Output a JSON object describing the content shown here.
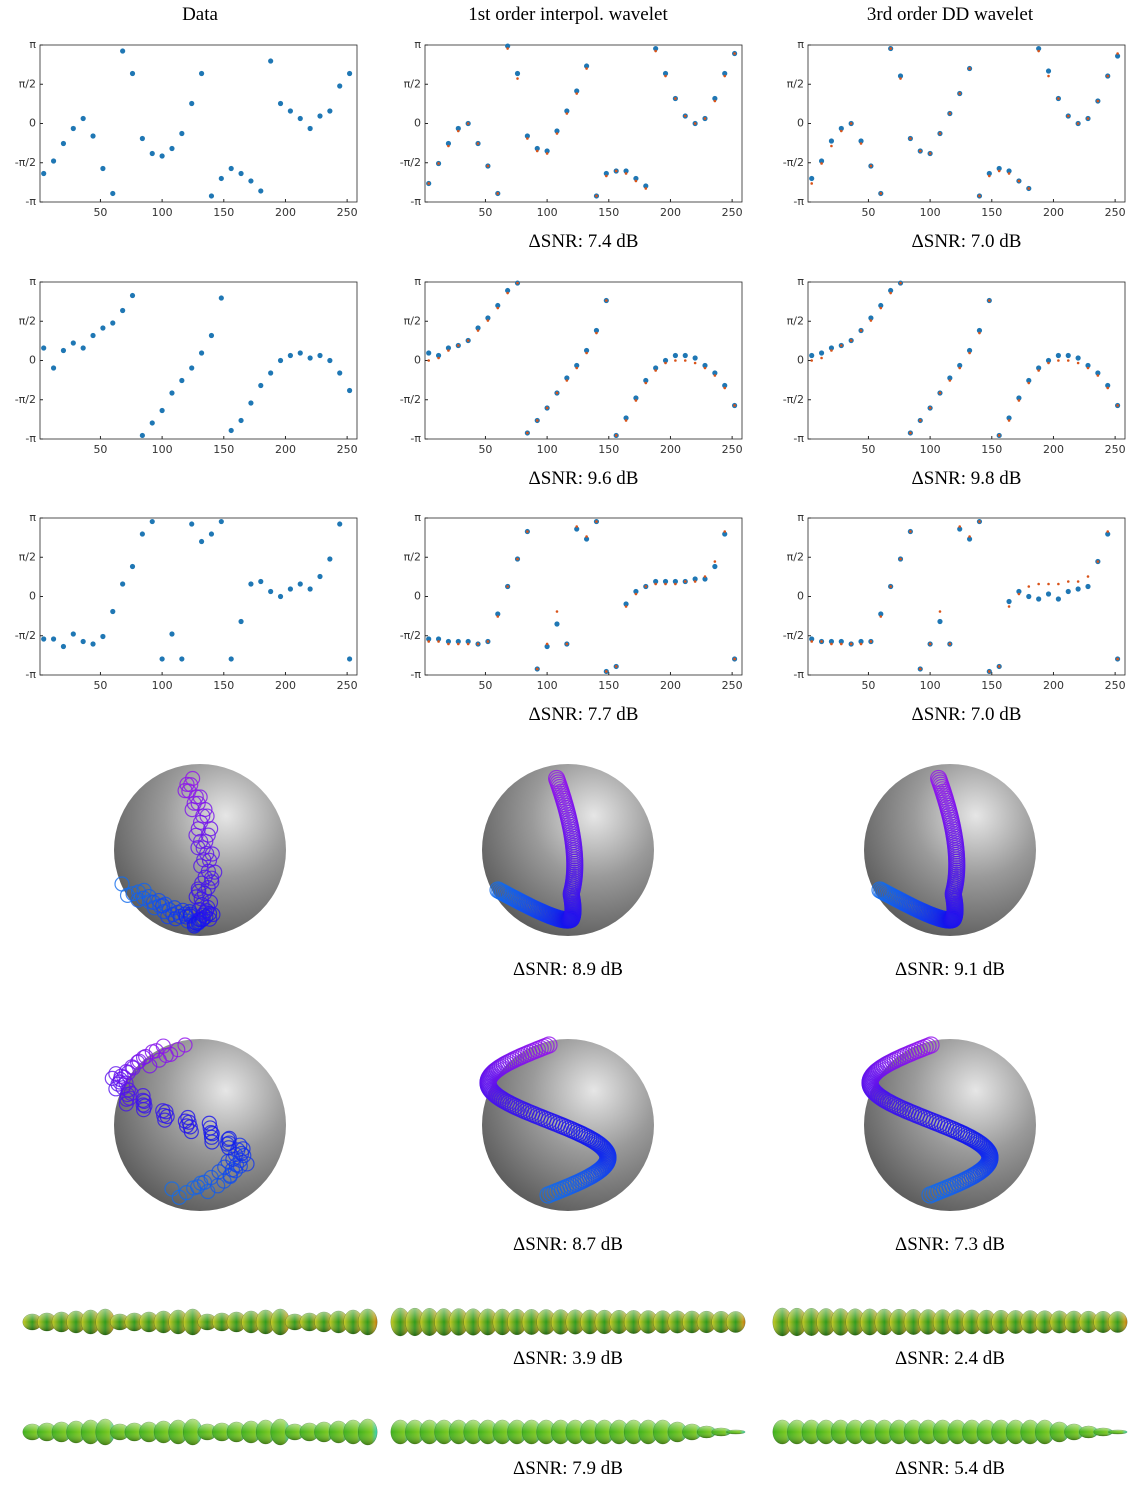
{
  "column_titles": [
    "Data",
    "1st order interpol. wavelet",
    "3rd order DD wavelet"
  ],
  "chart_data": [
    {
      "type": "scatter",
      "x": [
        4,
        12,
        20,
        28,
        36,
        44,
        52,
        60,
        68,
        76,
        84,
        92,
        100,
        108,
        116,
        124,
        132,
        140,
        148,
        156,
        164,
        172,
        180,
        188,
        196,
        204,
        212,
        220,
        228,
        236,
        244,
        252
      ],
      "series": [
        {
          "color": "#1f77b4",
          "values": [
            -2.0,
            -1.5,
            -0.8,
            -0.2,
            0.2,
            -0.5,
            -1.8,
            -2.8,
            2.9,
            2.0,
            -0.6,
            -1.2,
            -1.3,
            -1.0,
            -0.4,
            0.8,
            2.0,
            -2.9,
            -2.2,
            -1.8,
            -2.0,
            -2.3,
            -2.7,
            2.5,
            0.8,
            0.5,
            0.2,
            -0.2,
            0.3,
            0.5,
            1.5,
            2.0
          ]
        }
      ],
      "xlim": [
        1,
        258
      ],
      "xticks": [
        50,
        100,
        150,
        200,
        250
      ],
      "ylim": [
        -3.1416,
        3.1416
      ],
      "yticks": [
        {
          "value": -3.1416,
          "label": "-π"
        },
        {
          "value": -1.5708,
          "label": "-π/2"
        },
        0,
        {
          "value": 1.5708,
          "label": "π/2"
        },
        {
          "value": 3.1416,
          "label": "π"
        }
      ]
    },
    {
      "type": "scatter",
      "caption": "ΔSNR: 7.4 dB",
      "x": [
        4,
        12,
        20,
        28,
        36,
        44,
        52,
        60,
        68,
        76,
        84,
        92,
        100,
        108,
        116,
        124,
        132,
        140,
        148,
        156,
        164,
        172,
        180,
        188,
        196,
        204,
        212,
        220,
        228,
        236,
        244,
        252
      ],
      "series": [
        {
          "color": "#1f77b4",
          "values": [
            -2.4,
            -1.6,
            -0.8,
            -0.2,
            0.0,
            -0.8,
            -1.7,
            -2.8,
            3.1,
            2.0,
            -0.5,
            -1.0,
            -1.1,
            -0.3,
            0.5,
            1.3,
            2.3,
            -2.9,
            -2.0,
            -1.9,
            -1.9,
            -2.2,
            -2.5,
            3.0,
            2.0,
            1.0,
            0.3,
            0.0,
            0.2,
            1.0,
            2.0,
            2.8
          ]
        },
        {
          "color": "#d95319",
          "values": [
            -2.4,
            -1.6,
            -0.9,
            -0.3,
            0.0,
            -0.8,
            -1.7,
            -2.8,
            3.0,
            1.8,
            -0.6,
            -1.1,
            -1.2,
            -0.4,
            0.4,
            1.2,
            2.2,
            -2.9,
            -2.1,
            -1.9,
            -2.0,
            -2.3,
            -2.6,
            2.9,
            1.9,
            1.0,
            0.3,
            0.0,
            0.2,
            0.9,
            1.9,
            2.8
          ]
        }
      ],
      "xlim": [
        1,
        258
      ],
      "xticks": [
        50,
        100,
        150,
        200,
        250
      ],
      "ylim": [
        -3.1416,
        3.1416
      ],
      "yticks": [
        {
          "value": -3.1416,
          "label": "-π"
        },
        {
          "value": -1.5708,
          "label": "-π/2"
        },
        0,
        {
          "value": 1.5708,
          "label": "π/2"
        },
        {
          "value": 3.1416,
          "label": "π"
        }
      ]
    },
    {
      "type": "scatter",
      "caption": "ΔSNR: 7.0 dB",
      "x": [
        4,
        12,
        20,
        28,
        36,
        44,
        52,
        60,
        68,
        76,
        84,
        92,
        100,
        108,
        116,
        124,
        132,
        140,
        148,
        156,
        164,
        172,
        180,
        188,
        196,
        204,
        212,
        220,
        228,
        236,
        244,
        252
      ],
      "series": [
        {
          "color": "#1f77b4",
          "values": [
            -2.2,
            -1.5,
            -0.7,
            -0.2,
            0.0,
            -0.7,
            -1.7,
            -2.8,
            3.0,
            1.9,
            -0.6,
            -1.1,
            -1.2,
            -0.4,
            0.4,
            1.2,
            2.2,
            -2.9,
            -2.0,
            -1.8,
            -1.9,
            -2.3,
            -2.6,
            3.0,
            2.1,
            1.0,
            0.3,
            0.0,
            0.2,
            0.9,
            1.9,
            2.7
          ]
        },
        {
          "color": "#d95319",
          "values": [
            -2.4,
            -1.6,
            -0.9,
            -0.3,
            0.0,
            -0.8,
            -1.7,
            -2.8,
            3.0,
            1.8,
            -0.6,
            -1.1,
            -1.2,
            -0.4,
            0.4,
            1.2,
            2.2,
            -2.9,
            -2.1,
            -1.9,
            -2.0,
            -2.3,
            -2.6,
            2.9,
            1.9,
            1.0,
            0.3,
            0.0,
            0.2,
            0.9,
            1.9,
            2.8
          ]
        }
      ],
      "xlim": [
        1,
        258
      ],
      "xticks": [
        50,
        100,
        150,
        200,
        250
      ],
      "ylim": [
        -3.1416,
        3.1416
      ],
      "yticks": [
        {
          "value": -3.1416,
          "label": "-π"
        },
        {
          "value": -1.5708,
          "label": "-π/2"
        },
        0,
        {
          "value": 1.5708,
          "label": "π/2"
        },
        {
          "value": 3.1416,
          "label": "π"
        }
      ]
    },
    {
      "type": "scatter",
      "x": [
        4,
        12,
        20,
        28,
        36,
        44,
        52,
        60,
        68,
        76,
        84,
        92,
        100,
        108,
        116,
        124,
        132,
        140,
        148,
        156,
        164,
        172,
        180,
        188,
        196,
        204,
        212,
        220,
        228,
        236,
        244,
        252
      ],
      "series": [
        {
          "color": "#1f77b4",
          "values": [
            0.5,
            -0.3,
            0.4,
            0.7,
            0.5,
            1.0,
            1.3,
            1.5,
            2.0,
            2.6,
            -3.0,
            -2.5,
            -2.0,
            -1.3,
            -0.8,
            -0.3,
            0.3,
            1.0,
            2.5,
            -2.8,
            -2.4,
            -1.7,
            -1.0,
            -0.5,
            0.0,
            0.2,
            0.3,
            0.1,
            0.2,
            0.0,
            -0.5,
            -1.2
          ]
        }
      ],
      "xlim": [
        1,
        258
      ],
      "xticks": [
        50,
        100,
        150,
        200,
        250
      ],
      "ylim": [
        -3.1416,
        3.1416
      ],
      "yticks": [
        {
          "value": -3.1416,
          "label": "-π"
        },
        {
          "value": -1.5708,
          "label": "-π/2"
        },
        0,
        {
          "value": 1.5708,
          "label": "π/2"
        },
        {
          "value": 3.1416,
          "label": "π"
        }
      ]
    },
    {
      "type": "scatter",
      "caption": "ΔSNR: 9.6 dB",
      "x": [
        4,
        12,
        20,
        28,
        36,
        44,
        52,
        60,
        68,
        76,
        84,
        92,
        100,
        108,
        116,
        124,
        132,
        140,
        148,
        156,
        164,
        172,
        180,
        188,
        196,
        204,
        212,
        220,
        228,
        236,
        244,
        252
      ],
      "series": [
        {
          "color": "#1f77b4",
          "values": [
            0.3,
            0.2,
            0.5,
            0.6,
            0.8,
            1.3,
            1.7,
            2.2,
            2.8,
            3.1,
            -2.9,
            -2.4,
            -1.9,
            -1.3,
            -0.7,
            -0.2,
            0.4,
            1.2,
            2.4,
            -3.0,
            -2.3,
            -1.5,
            -0.8,
            -0.3,
            0.0,
            0.2,
            0.2,
            0.1,
            -0.2,
            -0.5,
            -1.0,
            -1.8
          ]
        },
        {
          "color": "#d95319",
          "values": [
            0.0,
            0.1,
            0.4,
            0.6,
            0.8,
            1.2,
            1.6,
            2.1,
            2.7,
            3.1,
            -2.9,
            -2.4,
            -1.9,
            -1.3,
            -0.8,
            -0.3,
            0.3,
            1.1,
            2.4,
            -3.0,
            -2.4,
            -1.6,
            -0.9,
            -0.4,
            -0.1,
            0.0,
            0.0,
            -0.1,
            -0.3,
            -0.6,
            -1.1,
            -1.8
          ]
        }
      ],
      "xlim": [
        1,
        258
      ],
      "xticks": [
        50,
        100,
        150,
        200,
        250
      ],
      "ylim": [
        -3.1416,
        3.1416
      ],
      "yticks": [
        {
          "value": -3.1416,
          "label": "-π"
        },
        {
          "value": -1.5708,
          "label": "-π/2"
        },
        0,
        {
          "value": 1.5708,
          "label": "π/2"
        },
        {
          "value": 3.1416,
          "label": "π"
        }
      ]
    },
    {
      "type": "scatter",
      "caption": "ΔSNR: 9.8 dB",
      "x": [
        4,
        12,
        20,
        28,
        36,
        44,
        52,
        60,
        68,
        76,
        84,
        92,
        100,
        108,
        116,
        124,
        132,
        140,
        148,
        156,
        164,
        172,
        180,
        188,
        196,
        204,
        212,
        220,
        228,
        236,
        244,
        252
      ],
      "series": [
        {
          "color": "#1f77b4",
          "values": [
            0.2,
            0.3,
            0.5,
            0.6,
            0.8,
            1.2,
            1.7,
            2.2,
            2.8,
            3.1,
            -2.9,
            -2.4,
            -1.9,
            -1.3,
            -0.7,
            -0.2,
            0.4,
            1.2,
            2.4,
            -3.0,
            -2.3,
            -1.5,
            -0.8,
            -0.3,
            0.0,
            0.2,
            0.2,
            0.1,
            -0.2,
            -0.5,
            -1.0,
            -1.8
          ]
        },
        {
          "color": "#d95319",
          "values": [
            0.0,
            0.1,
            0.4,
            0.6,
            0.8,
            1.2,
            1.6,
            2.1,
            2.7,
            3.1,
            -2.9,
            -2.4,
            -1.9,
            -1.3,
            -0.8,
            -0.3,
            0.3,
            1.1,
            2.4,
            -3.0,
            -2.4,
            -1.6,
            -0.9,
            -0.4,
            -0.1,
            0.0,
            0.0,
            -0.1,
            -0.3,
            -0.6,
            -1.1,
            -1.8
          ]
        }
      ],
      "xlim": [
        1,
        258
      ],
      "xticks": [
        50,
        100,
        150,
        200,
        250
      ],
      "ylim": [
        -3.1416,
        3.1416
      ],
      "yticks": [
        {
          "value": -3.1416,
          "label": "-π"
        },
        {
          "value": -1.5708,
          "label": "-π/2"
        },
        0,
        {
          "value": 1.5708,
          "label": "π/2"
        },
        {
          "value": 3.1416,
          "label": "π"
        }
      ]
    },
    {
      "type": "scatter",
      "x": [
        4,
        12,
        20,
        28,
        36,
        44,
        52,
        60,
        68,
        76,
        84,
        92,
        100,
        108,
        116,
        124,
        132,
        140,
        148,
        156,
        164,
        172,
        180,
        188,
        196,
        204,
        212,
        220,
        228,
        236,
        244,
        252
      ],
      "series": [
        {
          "color": "#1f77b4",
          "values": [
            -1.7,
            -1.7,
            -2.0,
            -1.5,
            -1.8,
            -1.9,
            -1.6,
            -0.6,
            0.5,
            1.2,
            2.5,
            3.0,
            -2.5,
            -1.5,
            -2.5,
            2.9,
            2.2,
            2.5,
            3.0,
            -2.5,
            -1.0,
            0.5,
            0.6,
            0.2,
            0.0,
            0.3,
            0.5,
            0.3,
            0.8,
            1.5,
            2.9,
            -2.5
          ]
        }
      ],
      "xlim": [
        1,
        258
      ],
      "xticks": [
        50,
        100,
        150,
        200,
        250
      ],
      "ylim": [
        -3.1416,
        3.1416
      ],
      "yticks": [
        {
          "value": -3.1416,
          "label": "-π"
        },
        {
          "value": -1.5708,
          "label": "-π/2"
        },
        0,
        {
          "value": 1.5708,
          "label": "π/2"
        },
        {
          "value": 3.1416,
          "label": "π"
        }
      ]
    },
    {
      "type": "scatter",
      "caption": "ΔSNR: 7.7 dB",
      "x": [
        4,
        12,
        20,
        28,
        36,
        44,
        52,
        60,
        68,
        76,
        84,
        92,
        100,
        108,
        116,
        124,
        132,
        140,
        148,
        156,
        164,
        172,
        180,
        188,
        196,
        204,
        212,
        220,
        228,
        236,
        244,
        252
      ],
      "series": [
        {
          "color": "#1f77b4",
          "values": [
            -1.7,
            -1.7,
            -1.8,
            -1.8,
            -1.8,
            -1.9,
            -1.8,
            -0.7,
            0.4,
            1.5,
            2.6,
            -2.9,
            -2.0,
            -1.1,
            -1.9,
            2.7,
            2.3,
            3.0,
            -3.0,
            -2.8,
            -0.3,
            0.2,
            0.4,
            0.6,
            0.6,
            0.6,
            0.6,
            0.7,
            0.7,
            1.2,
            2.5,
            -2.5
          ]
        },
        {
          "color": "#d95319",
          "values": [
            -1.8,
            -1.8,
            -1.9,
            -1.9,
            -1.9,
            -1.9,
            -1.8,
            -0.8,
            0.4,
            1.5,
            2.6,
            -2.9,
            -1.9,
            -0.6,
            -1.9,
            2.8,
            2.4,
            3.0,
            -3.0,
            -2.8,
            -0.4,
            0.1,
            0.4,
            0.5,
            0.5,
            0.5,
            0.6,
            0.6,
            0.8,
            1.4,
            2.6,
            -2.5
          ]
        }
      ],
      "xlim": [
        1,
        258
      ],
      "xticks": [
        50,
        100,
        150,
        200,
        250
      ],
      "ylim": [
        -3.1416,
        3.1416
      ],
      "yticks": [
        {
          "value": -3.1416,
          "label": "-π"
        },
        {
          "value": -1.5708,
          "label": "-π/2"
        },
        0,
        {
          "value": 1.5708,
          "label": "π/2"
        },
        {
          "value": 3.1416,
          "label": "π"
        }
      ]
    },
    {
      "type": "scatter",
      "caption": "ΔSNR: 7.0 dB",
      "x": [
        4,
        12,
        20,
        28,
        36,
        44,
        52,
        60,
        68,
        76,
        84,
        92,
        100,
        108,
        116,
        124,
        132,
        140,
        148,
        156,
        164,
        172,
        180,
        188,
        196,
        204,
        212,
        220,
        228,
        236,
        244,
        252
      ],
      "series": [
        {
          "color": "#1f77b4",
          "values": [
            -1.7,
            -1.8,
            -1.8,
            -1.8,
            -1.9,
            -1.8,
            -1.8,
            -0.7,
            0.4,
            1.5,
            2.6,
            -2.9,
            -1.9,
            -1.0,
            -1.9,
            2.7,
            2.3,
            3.0,
            -3.0,
            -2.8,
            -0.2,
            0.2,
            0.0,
            -0.1,
            0.1,
            -0.1,
            0.2,
            0.3,
            0.4,
            1.4,
            2.5,
            -2.5
          ]
        },
        {
          "color": "#d95319",
          "values": [
            -1.8,
            -1.8,
            -1.9,
            -1.9,
            -1.9,
            -1.9,
            -1.8,
            -0.8,
            0.4,
            1.5,
            2.6,
            -2.9,
            -1.9,
            -0.6,
            -1.9,
            2.8,
            2.4,
            3.0,
            -3.0,
            -2.8,
            -0.4,
            0.1,
            0.4,
            0.5,
            0.5,
            0.5,
            0.6,
            0.6,
            0.8,
            1.4,
            2.6,
            -2.5
          ]
        }
      ],
      "xlim": [
        1,
        258
      ],
      "xticks": [
        50,
        100,
        150,
        200,
        250
      ],
      "ylim": [
        -3.1416,
        3.1416
      ],
      "yticks": [
        {
          "value": -3.1416,
          "label": "-π"
        },
        {
          "value": -1.5708,
          "label": "-π/2"
        },
        0,
        {
          "value": 1.5708,
          "label": "π/2"
        },
        {
          "value": 3.1416,
          "label": "π"
        }
      ]
    }
  ],
  "sphere_captions": [
    [
      "ΔSNR: 8.9 dB",
      "ΔSNR: 9.1 dB"
    ],
    [
      "ΔSNR: 8.7 dB",
      "ΔSNR: 7.3 dB"
    ]
  ],
  "tensor_captions": [
    [
      "ΔSNR: 3.9 dB",
      "ΔSNR: 2.4 dB"
    ],
    [
      "ΔSNR: 7.9 dB",
      "ΔSNR: 5.4 dB"
    ]
  ]
}
